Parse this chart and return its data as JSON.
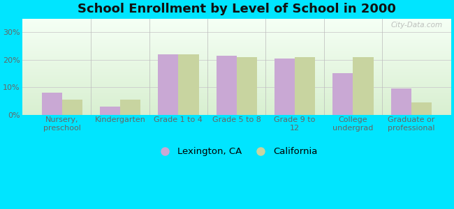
{
  "title": "School Enrollment by Level of School in 2000",
  "categories": [
    "Nursery,\npreschool",
    "Kindergarten",
    "Grade 1 to 4",
    "Grade 5 to 8",
    "Grade 9 to\n12",
    "College\nundergrad",
    "Graduate or\nprofessional"
  ],
  "lexington": [
    8.0,
    3.0,
    22.0,
    21.5,
    20.5,
    15.0,
    9.5
  ],
  "california": [
    5.5,
    5.5,
    22.0,
    21.0,
    21.0,
    21.0,
    4.5
  ],
  "lexington_color": "#c9a8d4",
  "california_color": "#c8d4a0",
  "background_outer": "#00e5ff",
  "ylim": [
    0,
    35
  ],
  "yticks": [
    0,
    10,
    20,
    30
  ],
  "yticklabels": [
    "0%",
    "10%",
    "20%",
    "30%"
  ],
  "bar_width": 0.35,
  "legend_labels": [
    "Lexington, CA",
    "California"
  ],
  "title_fontsize": 13,
  "tick_fontsize": 8,
  "legend_fontsize": 9.5,
  "watermark": "City-Data.com"
}
